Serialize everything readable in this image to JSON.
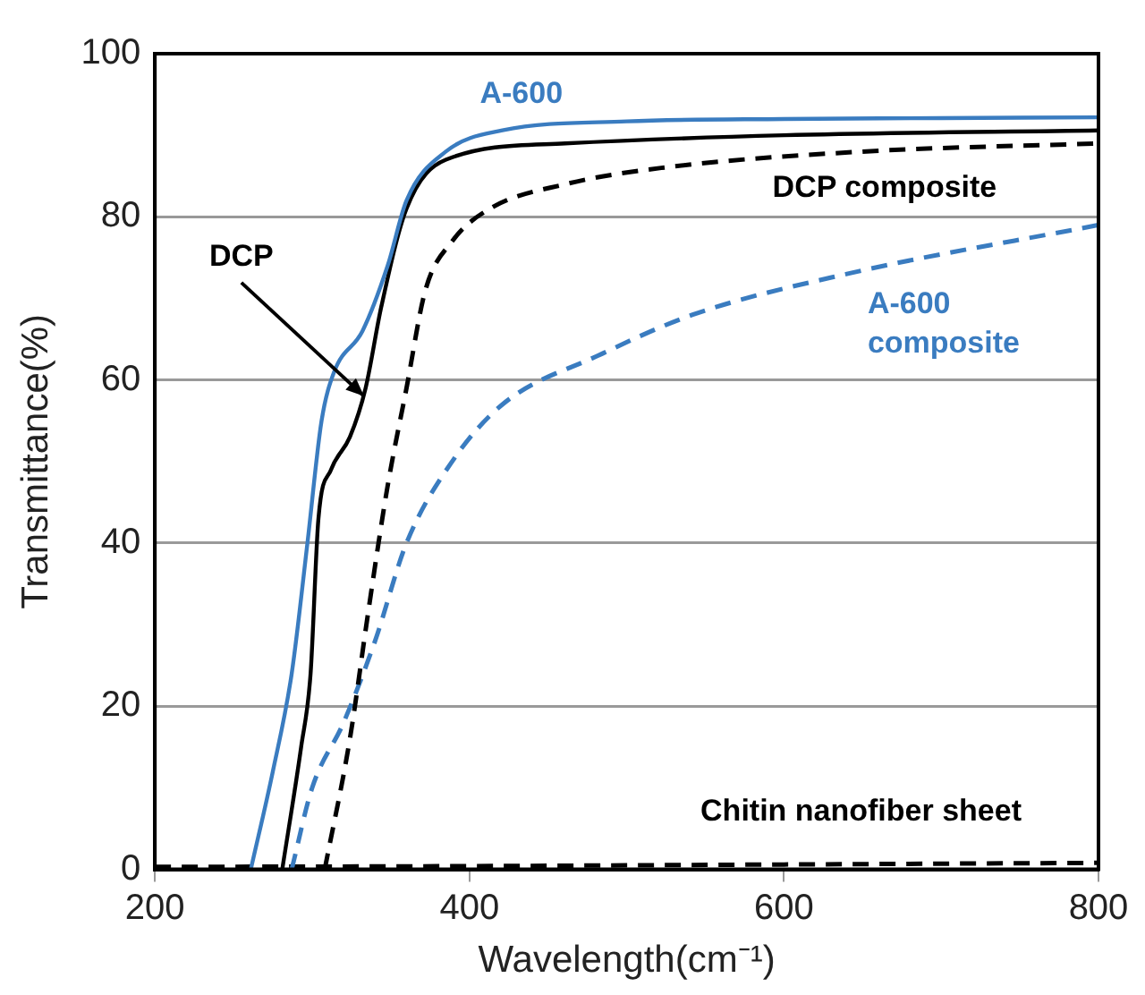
{
  "chart_data": {
    "type": "line",
    "xlabel": "Wavelength(cm⁻¹)",
    "ylabel": "Transmittance(%)",
    "xlim": [
      200,
      800
    ],
    "xticks": [
      200,
      400,
      600,
      800
    ],
    "ylim": [
      0,
      100
    ],
    "yticks": [
      0,
      20,
      40,
      60,
      80,
      100
    ],
    "grid": "y",
    "marker": "none",
    "series": [
      {
        "name": "A-600",
        "color": "#3a7cc0",
        "line_style": "solid",
        "x": [
          261,
          275,
          287,
          297,
          306,
          314,
          332,
          348,
          360,
          385,
          421,
          500,
          600,
          700,
          800
        ],
        "values": [
          0,
          12,
          24,
          40,
          55,
          61,
          66,
          74,
          82,
          88,
          90.6,
          91.7,
          92,
          92.1,
          92.2
        ]
      },
      {
        "name": "DCP",
        "color": "#000000",
        "line_style": "solid",
        "x": [
          281,
          293,
          299,
          304,
          312,
          324,
          334,
          344,
          360,
          385,
          461,
          600,
          800
        ],
        "values": [
          0,
          15,
          24,
          43,
          49,
          53,
          59,
          69,
          81,
          87,
          89,
          90,
          90.6
        ]
      },
      {
        "name": "DCP composite",
        "color": "#000000",
        "line_style": "dashed",
        "x": [
          308,
          324,
          336,
          348,
          360,
          372,
          389,
          413,
          461,
          522,
          650,
          800
        ],
        "values": [
          0,
          16,
          32,
          47,
          59,
          71,
          77,
          81,
          84,
          86,
          88,
          89
        ]
      },
      {
        "name": "A-600 composite",
        "color": "#3a7cc0",
        "line_style": "dashed",
        "x": [
          287,
          300,
          320,
          340,
          360,
          389,
          421,
          482,
          542,
          640,
          800
        ],
        "values": [
          0,
          10,
          18,
          28,
          40,
          50,
          57,
          63,
          68,
          73,
          79
        ]
      },
      {
        "name": "Chitin nanofiber sheet",
        "color": "#000000",
        "line_style": "dashed",
        "x": [
          200,
          400,
          600,
          800
        ],
        "values": [
          0.3,
          0.4,
          0.6,
          0.8
        ]
      }
    ]
  }
}
